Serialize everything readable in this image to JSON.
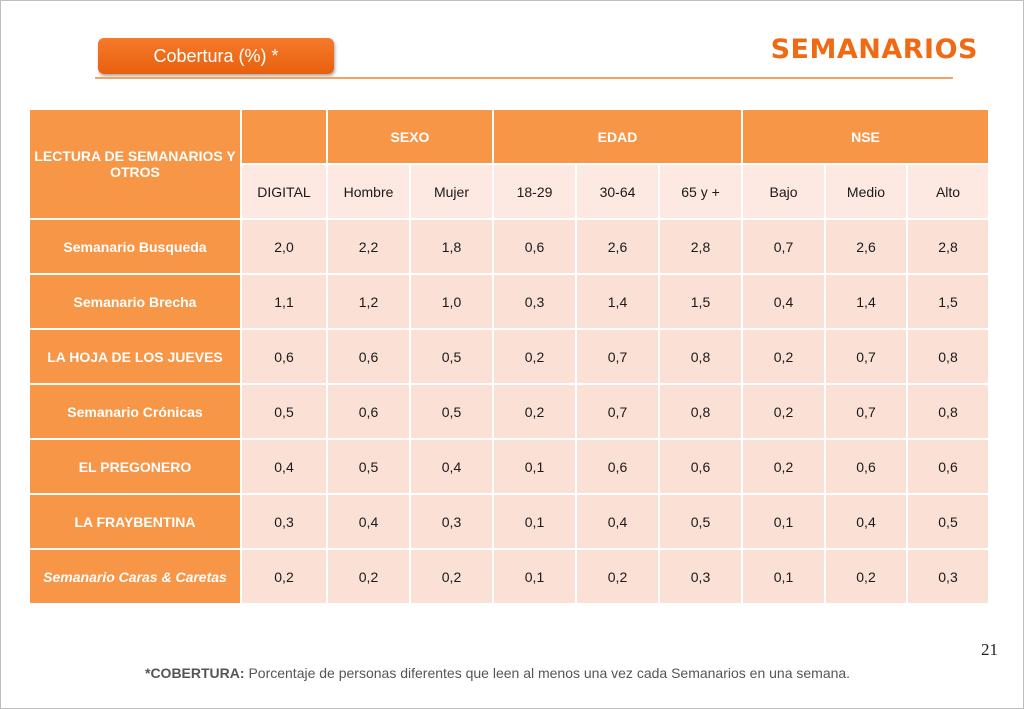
{
  "header": {
    "badge_label": "Cobertura (%) *",
    "title": "SEMANARIOS"
  },
  "table": {
    "corner_label": "LECTURA DE SEMANARIOS Y OTROS",
    "groups": [
      "SEXO",
      "EDAD",
      "NSE"
    ],
    "columns": [
      "DIGITAL",
      "Hombre",
      "Mujer",
      "18-29",
      "30-64",
      "65 y +",
      "Bajo",
      "Medio",
      "Alto"
    ],
    "rows": [
      {
        "label": "Semanario Busqueda",
        "values": [
          "2,0",
          "2,2",
          "1,8",
          "0,6",
          "2,6",
          "2,8",
          "0,7",
          "2,6",
          "2,8"
        ]
      },
      {
        "label": "Semanario Brecha",
        "values": [
          "1,1",
          "1,2",
          "1,0",
          "0,3",
          "1,4",
          "1,5",
          "0,4",
          "1,4",
          "1,5"
        ]
      },
      {
        "label": "LA HOJA DE LOS JUEVES",
        "values": [
          "0,6",
          "0,6",
          "0,5",
          "0,2",
          "0,7",
          "0,8",
          "0,2",
          "0,7",
          "0,8"
        ]
      },
      {
        "label": "Semanario Crónicas",
        "values": [
          "0,5",
          "0,6",
          "0,5",
          "0,2",
          "0,7",
          "0,8",
          "0,2",
          "0,7",
          "0,8"
        ]
      },
      {
        "label": "EL PREGONERO",
        "values": [
          "0,4",
          "0,5",
          "0,4",
          "0,1",
          "0,6",
          "0,6",
          "0,2",
          "0,6",
          "0,6"
        ]
      },
      {
        "label": "LA FRAYBENTINA",
        "values": [
          "0,3",
          "0,4",
          "0,3",
          "0,1",
          "0,4",
          "0,5",
          "0,1",
          "0,4",
          "0,5"
        ]
      },
      {
        "label": "Semanario Caras & Caretas",
        "values": [
          "0,2",
          "0,2",
          "0,2",
          "0,1",
          "0,2",
          "0,3",
          "0,1",
          "0,2",
          "0,3"
        ]
      }
    ]
  },
  "page_number": "21",
  "footnote": {
    "term": "*COBERTURA:",
    "text": " Porcentaje de personas diferentes que leen al menos una vez cada Semanarios en una semana."
  }
}
